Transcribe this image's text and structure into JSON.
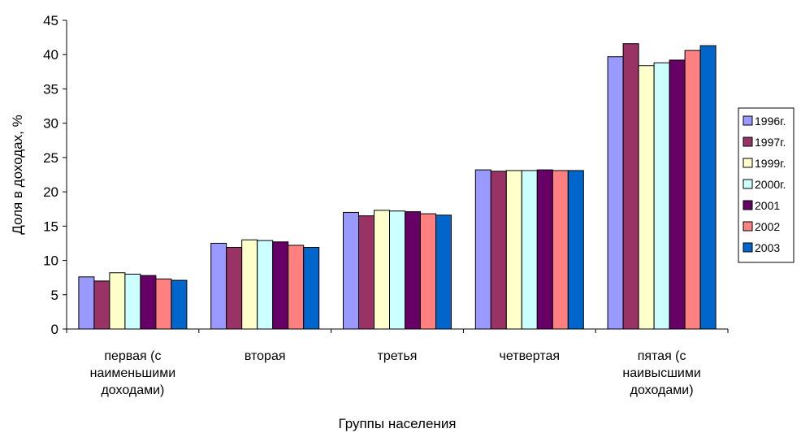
{
  "chart_data": {
    "type": "bar",
    "xlabel": "Группы населения",
    "ylabel": "Доля в доходах, %",
    "ylim": [
      0,
      45
    ],
    "ytick_step": 5,
    "grid": false,
    "legend_position": "right",
    "categories": [
      [
        "первая (с",
        "наименьшими",
        "доходами)"
      ],
      [
        "вторая"
      ],
      [
        "третья"
      ],
      [
        "четвертая"
      ],
      [
        "пятая (с",
        "наивысшими",
        "доходами)"
      ]
    ],
    "series": [
      {
        "name": "1996г.",
        "color": "#9999ff",
        "values": [
          7.6,
          12.5,
          17.0,
          23.2,
          39.7
        ]
      },
      {
        "name": "1997г.",
        "color": "#993366",
        "values": [
          7.0,
          11.9,
          16.5,
          23.0,
          41.6
        ]
      },
      {
        "name": "1999г.",
        "color": "#ffffcc",
        "values": [
          8.2,
          13.0,
          17.3,
          23.1,
          38.4
        ]
      },
      {
        "name": "2000г.",
        "color": "#ccffff",
        "values": [
          8.0,
          12.9,
          17.2,
          23.1,
          38.8
        ]
      },
      {
        "name": "2001",
        "color": "#660066",
        "values": [
          7.8,
          12.7,
          17.1,
          23.2,
          39.2
        ]
      },
      {
        "name": "2002",
        "color": "#ff8080",
        "values": [
          7.3,
          12.2,
          16.8,
          23.1,
          40.6
        ]
      },
      {
        "name": "2003",
        "color": "#0066cc",
        "values": [
          7.1,
          11.9,
          16.6,
          23.1,
          41.3
        ]
      }
    ]
  }
}
